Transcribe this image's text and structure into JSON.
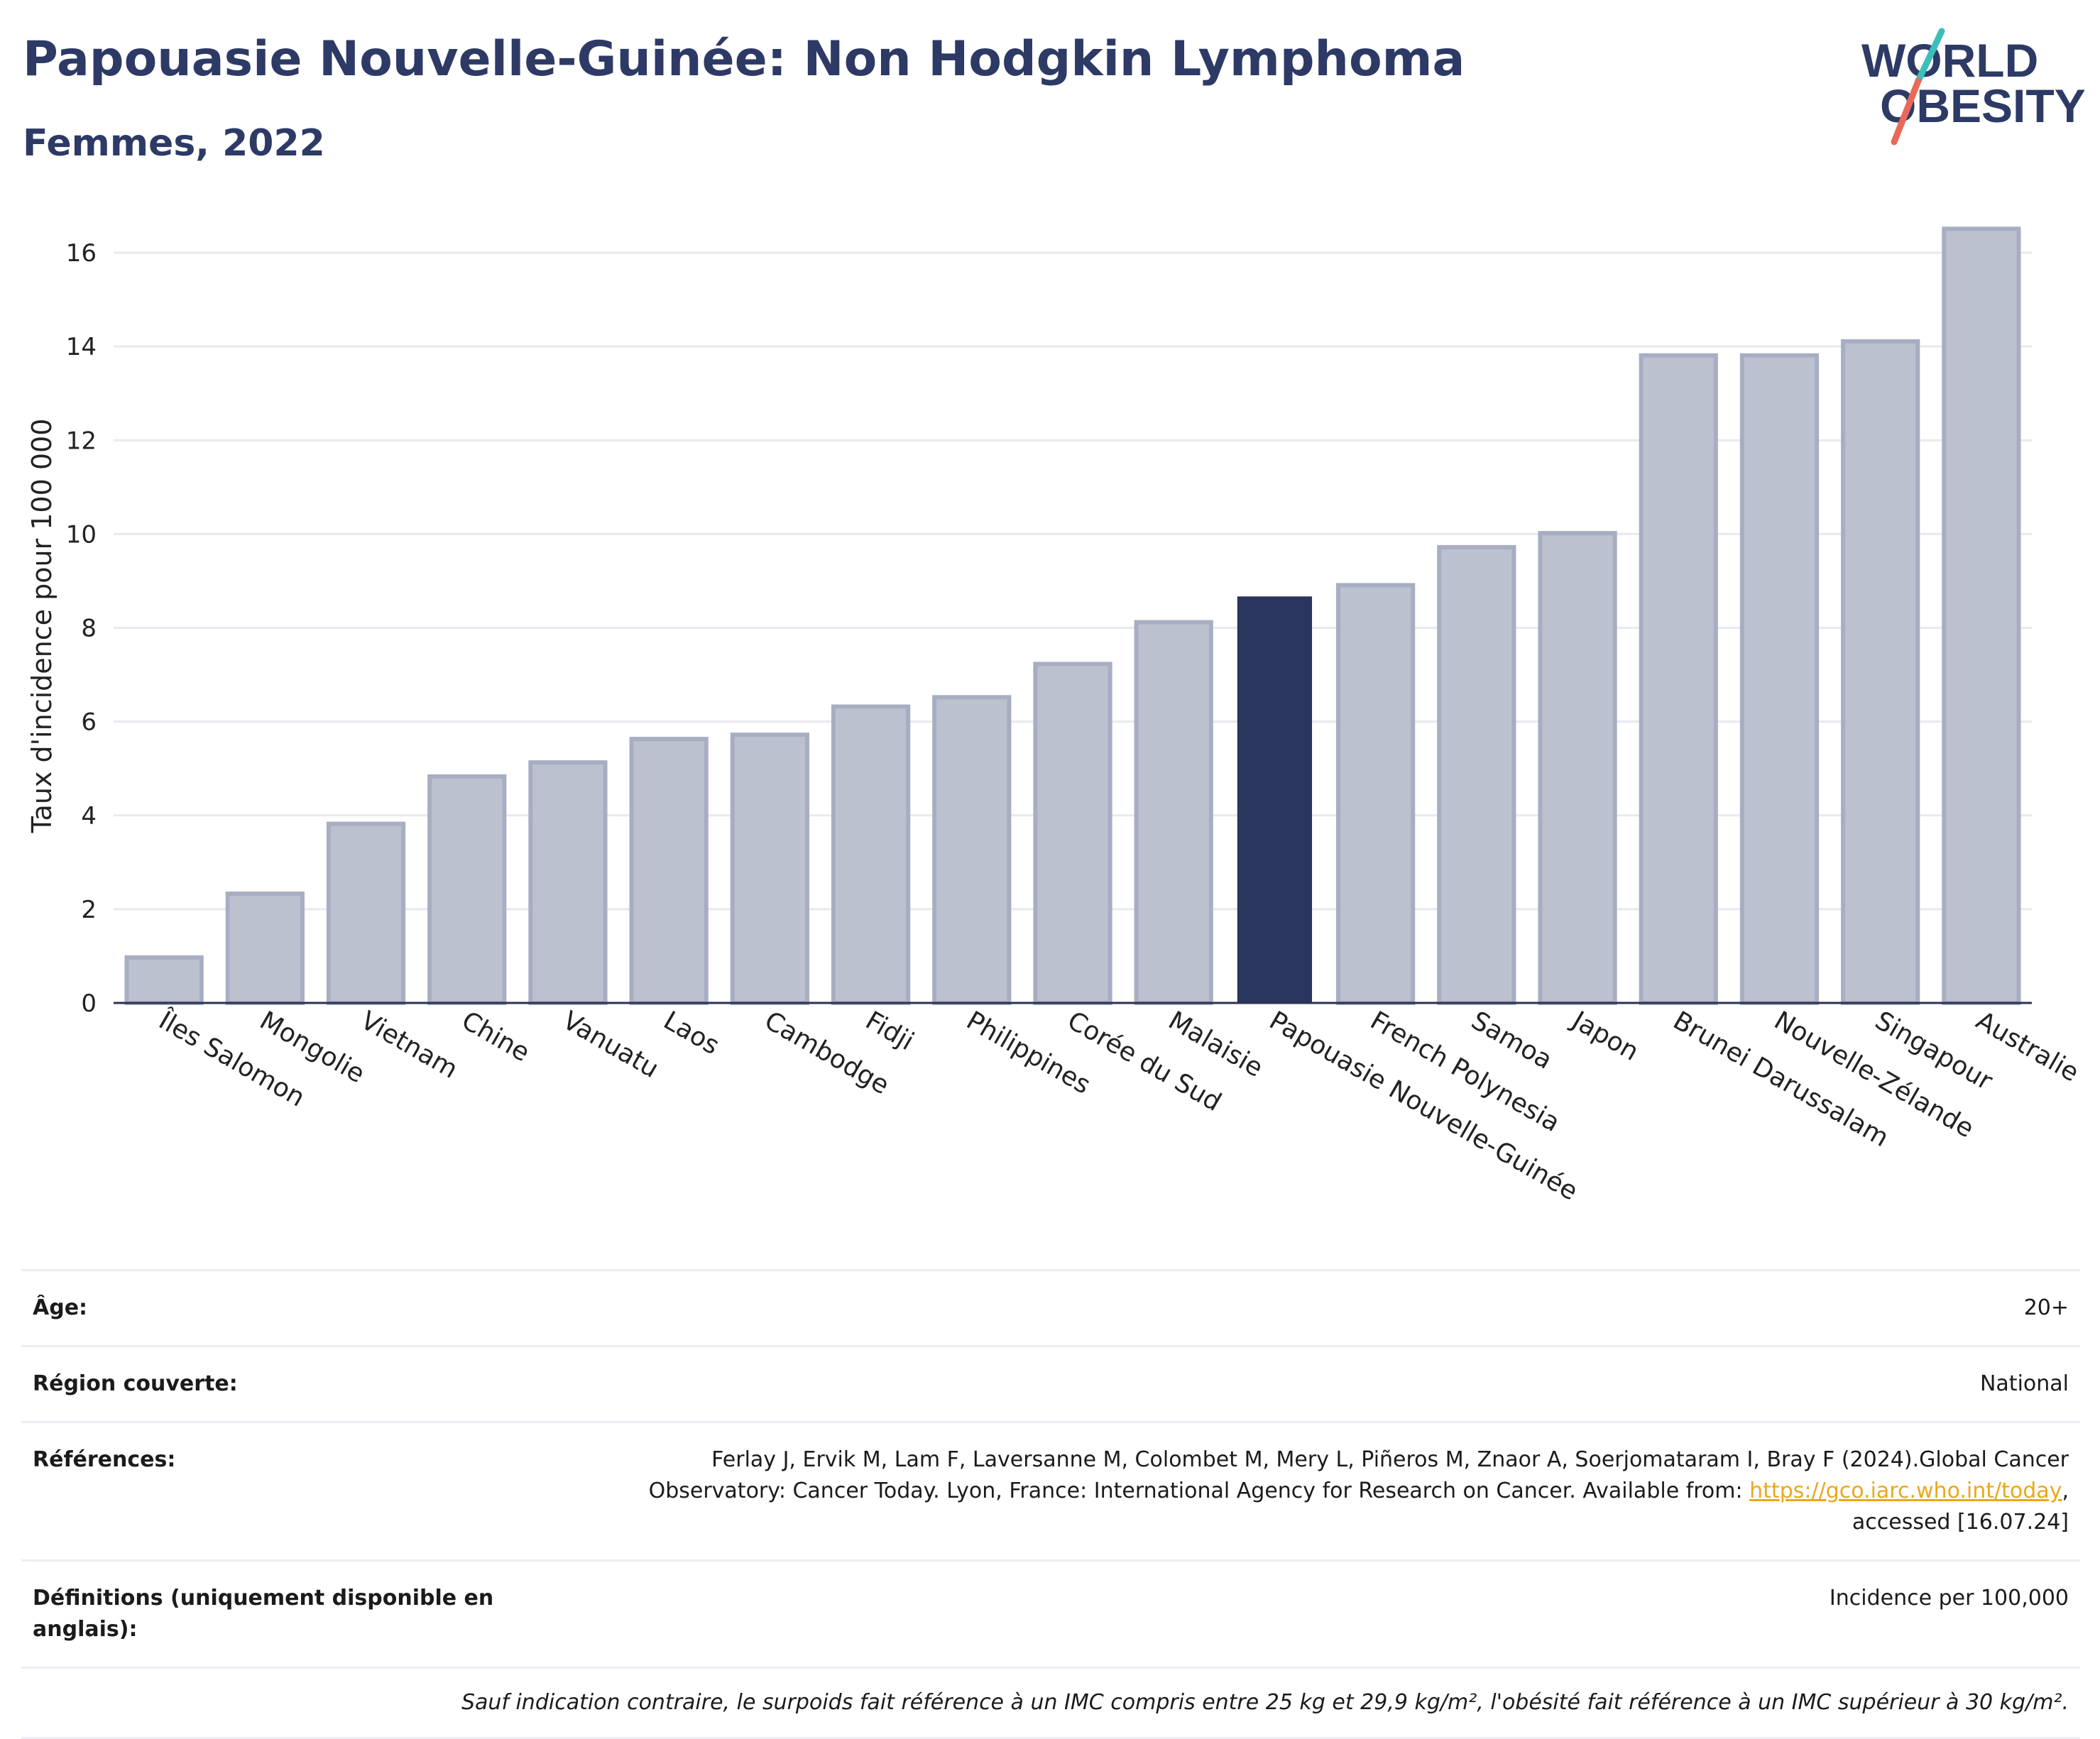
{
  "header": {
    "title": "Papouasie Nouvelle-Guinée: Non Hodgkin Lymphoma",
    "subtitle": "Femmes, 2022"
  },
  "logo": {
    "line1": "WORLD",
    "line2": "OBESITY",
    "colors": {
      "text": "#2d3a66",
      "slash_top": "#3cbfb8",
      "slash_bottom": "#e8695a"
    }
  },
  "chart_data": {
    "type": "bar",
    "ylabel": "Taux d'incidence pour 100 000",
    "xlabel": "",
    "ylim": [
      0,
      17
    ],
    "yticks": [
      0,
      2,
      4,
      6,
      8,
      10,
      12,
      14,
      16
    ],
    "grid": true,
    "highlight": "Papouasie Nouvelle-Guinée",
    "colors": {
      "bar": "#bcc1cf",
      "bar_edge": "#a7aec2",
      "highlight": "#2b365f",
      "grid": "#e8e9ee",
      "axis": "#2b3152"
    },
    "categories": [
      "Îles Salomon",
      "Mongolie",
      "Vietnam",
      "Chine",
      "Vanuatu",
      "Laos",
      "Cambodge",
      "Fidji",
      "Philippines",
      "Corée du Sud",
      "Malaisie",
      "Papouasie Nouvelle-Guinée",
      "French Polynesia",
      "Samoa",
      "Japon",
      "Brunei Darussalam",
      "Nouvelle-Zélande",
      "Singapour",
      "Australie"
    ],
    "values": [
      0.97,
      2.33,
      3.82,
      4.83,
      5.13,
      5.63,
      5.72,
      6.32,
      6.52,
      7.23,
      8.12,
      8.67,
      8.91,
      9.72,
      10.02,
      13.81,
      13.81,
      14.11,
      16.51
    ]
  },
  "meta": {
    "age_label": "Âge:",
    "age_value": "20+",
    "region_label": "Région couverte:",
    "region_value": "National",
    "references_label": "Références:",
    "references_text": "Ferlay J, Ervik M, Lam F, Laversanne M, Colombet M, Mery L, Piñeros M, Znaor A, Soerjomataram I, Bray F (2024).Global Cancer Observatory: Cancer Today. Lyon, France: International Agency for Research on Cancer. Available from: ",
    "references_link": "https://gco.iarc.who.int/today",
    "references_suffix": ", accessed [16.07.24]",
    "definitions_label": "Définitions (uniquement disponible en anglais):",
    "definitions_value": "Incidence per 100,000",
    "footnote": "Sauf indication contraire, le surpoids fait référence à un IMC compris entre 25 kg et 29,9 kg/m², l'obésité fait référence à un IMC supérieur à 30 kg/m²."
  }
}
